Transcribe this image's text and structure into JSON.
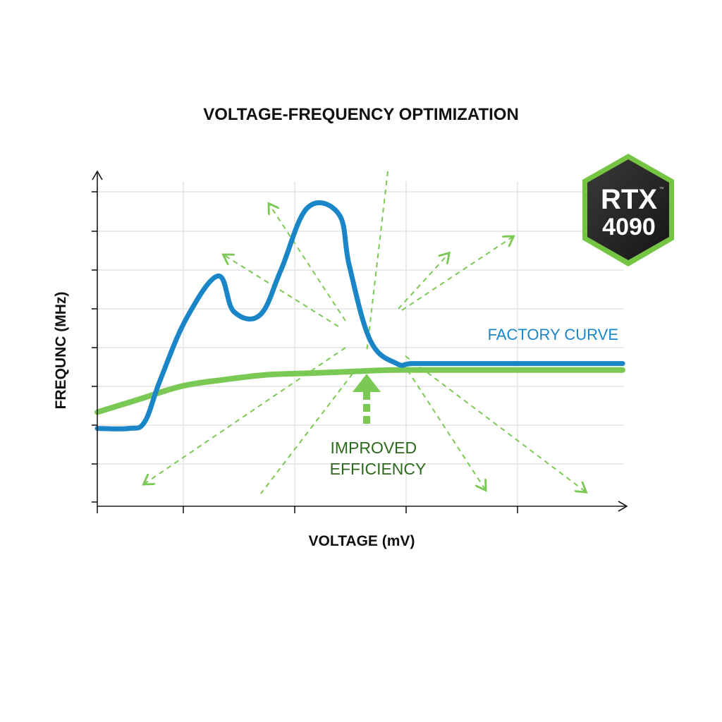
{
  "chart_data": {
    "type": "line",
    "title": "VOLTAGE-FREQUENCY OPTIMIZATION",
    "xlabel": "VOLTAGE (mV)",
    "ylabel": "FREQUNC (MHz)",
    "xlim": [
      0,
      100
    ],
    "ylim": [
      0,
      100
    ],
    "grid": true,
    "series": [
      {
        "name": "FACTORY CURVE",
        "color": "#1a86c8",
        "x": [
          0,
          6,
          9,
          12,
          17,
          23,
          26,
          31,
          35,
          40,
          46,
          48,
          52,
          57,
          60,
          68,
          80,
          100
        ],
        "y": [
          24,
          24,
          26,
          39,
          58,
          71,
          60,
          59,
          73,
          92,
          90,
          74,
          51,
          44,
          44,
          44,
          44,
          44
        ]
      },
      {
        "name": "",
        "color": "#7bc955",
        "x": [
          0,
          8,
          16,
          24,
          32,
          40,
          48,
          56,
          64,
          72,
          80,
          100
        ],
        "y": [
          29,
          33,
          37,
          39,
          40.5,
          41,
          41.5,
          42,
          42,
          42,
          42,
          42
        ]
      }
    ],
    "annotations": [
      {
        "text": "IMPROVED EFFICIENCY",
        "color": "#2d6a1e"
      }
    ]
  },
  "badge": {
    "line1": "RTX",
    "line2": "4090",
    "tm": "™"
  },
  "colors": {
    "axis": "#1a1a1a",
    "grid": "#e4e4e4",
    "factory": "#1a86c8",
    "optimized": "#7bc955",
    "annotation": "#2d6a1e"
  }
}
